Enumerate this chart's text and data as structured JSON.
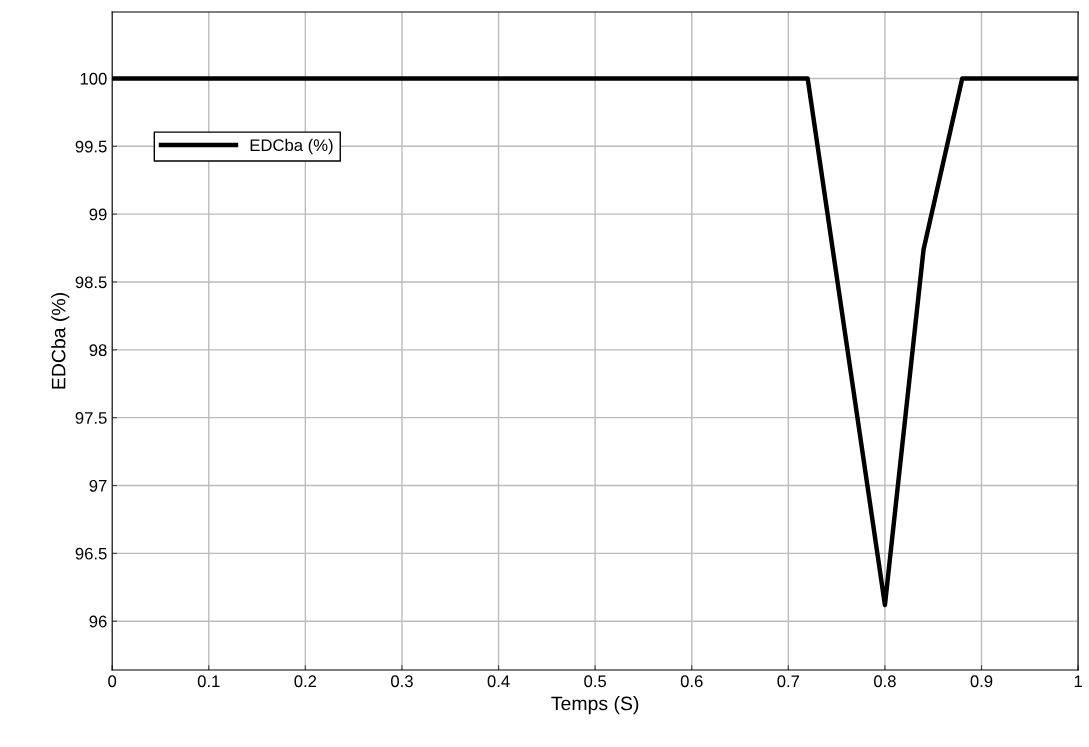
{
  "chart_data": {
    "type": "line",
    "xlabel": "Temps (S)",
    "ylabel": "EDCba (%)",
    "x": [
      0,
      0.72,
      0.8,
      0.84,
      0.88,
      1
    ],
    "series": [
      {
        "name": "EDCba (%)",
        "color": "#000000",
        "values": [
          100,
          100,
          96.12,
          98.74,
          100,
          100
        ]
      }
    ],
    "xlim": [
      0,
      1
    ],
    "xticks": [
      0,
      0.1,
      0.2,
      0.3,
      0.4,
      0.5,
      0.6,
      0.7,
      0.8,
      0.9,
      1
    ],
    "ylim": [
      95.64,
      100.49
    ],
    "yticks": [
      96,
      96.5,
      97,
      97.5,
      98,
      98.5,
      99,
      99.5,
      100
    ],
    "grid": true,
    "legend": "top left",
    "marker": "none",
    "line_style": "solid"
  }
}
